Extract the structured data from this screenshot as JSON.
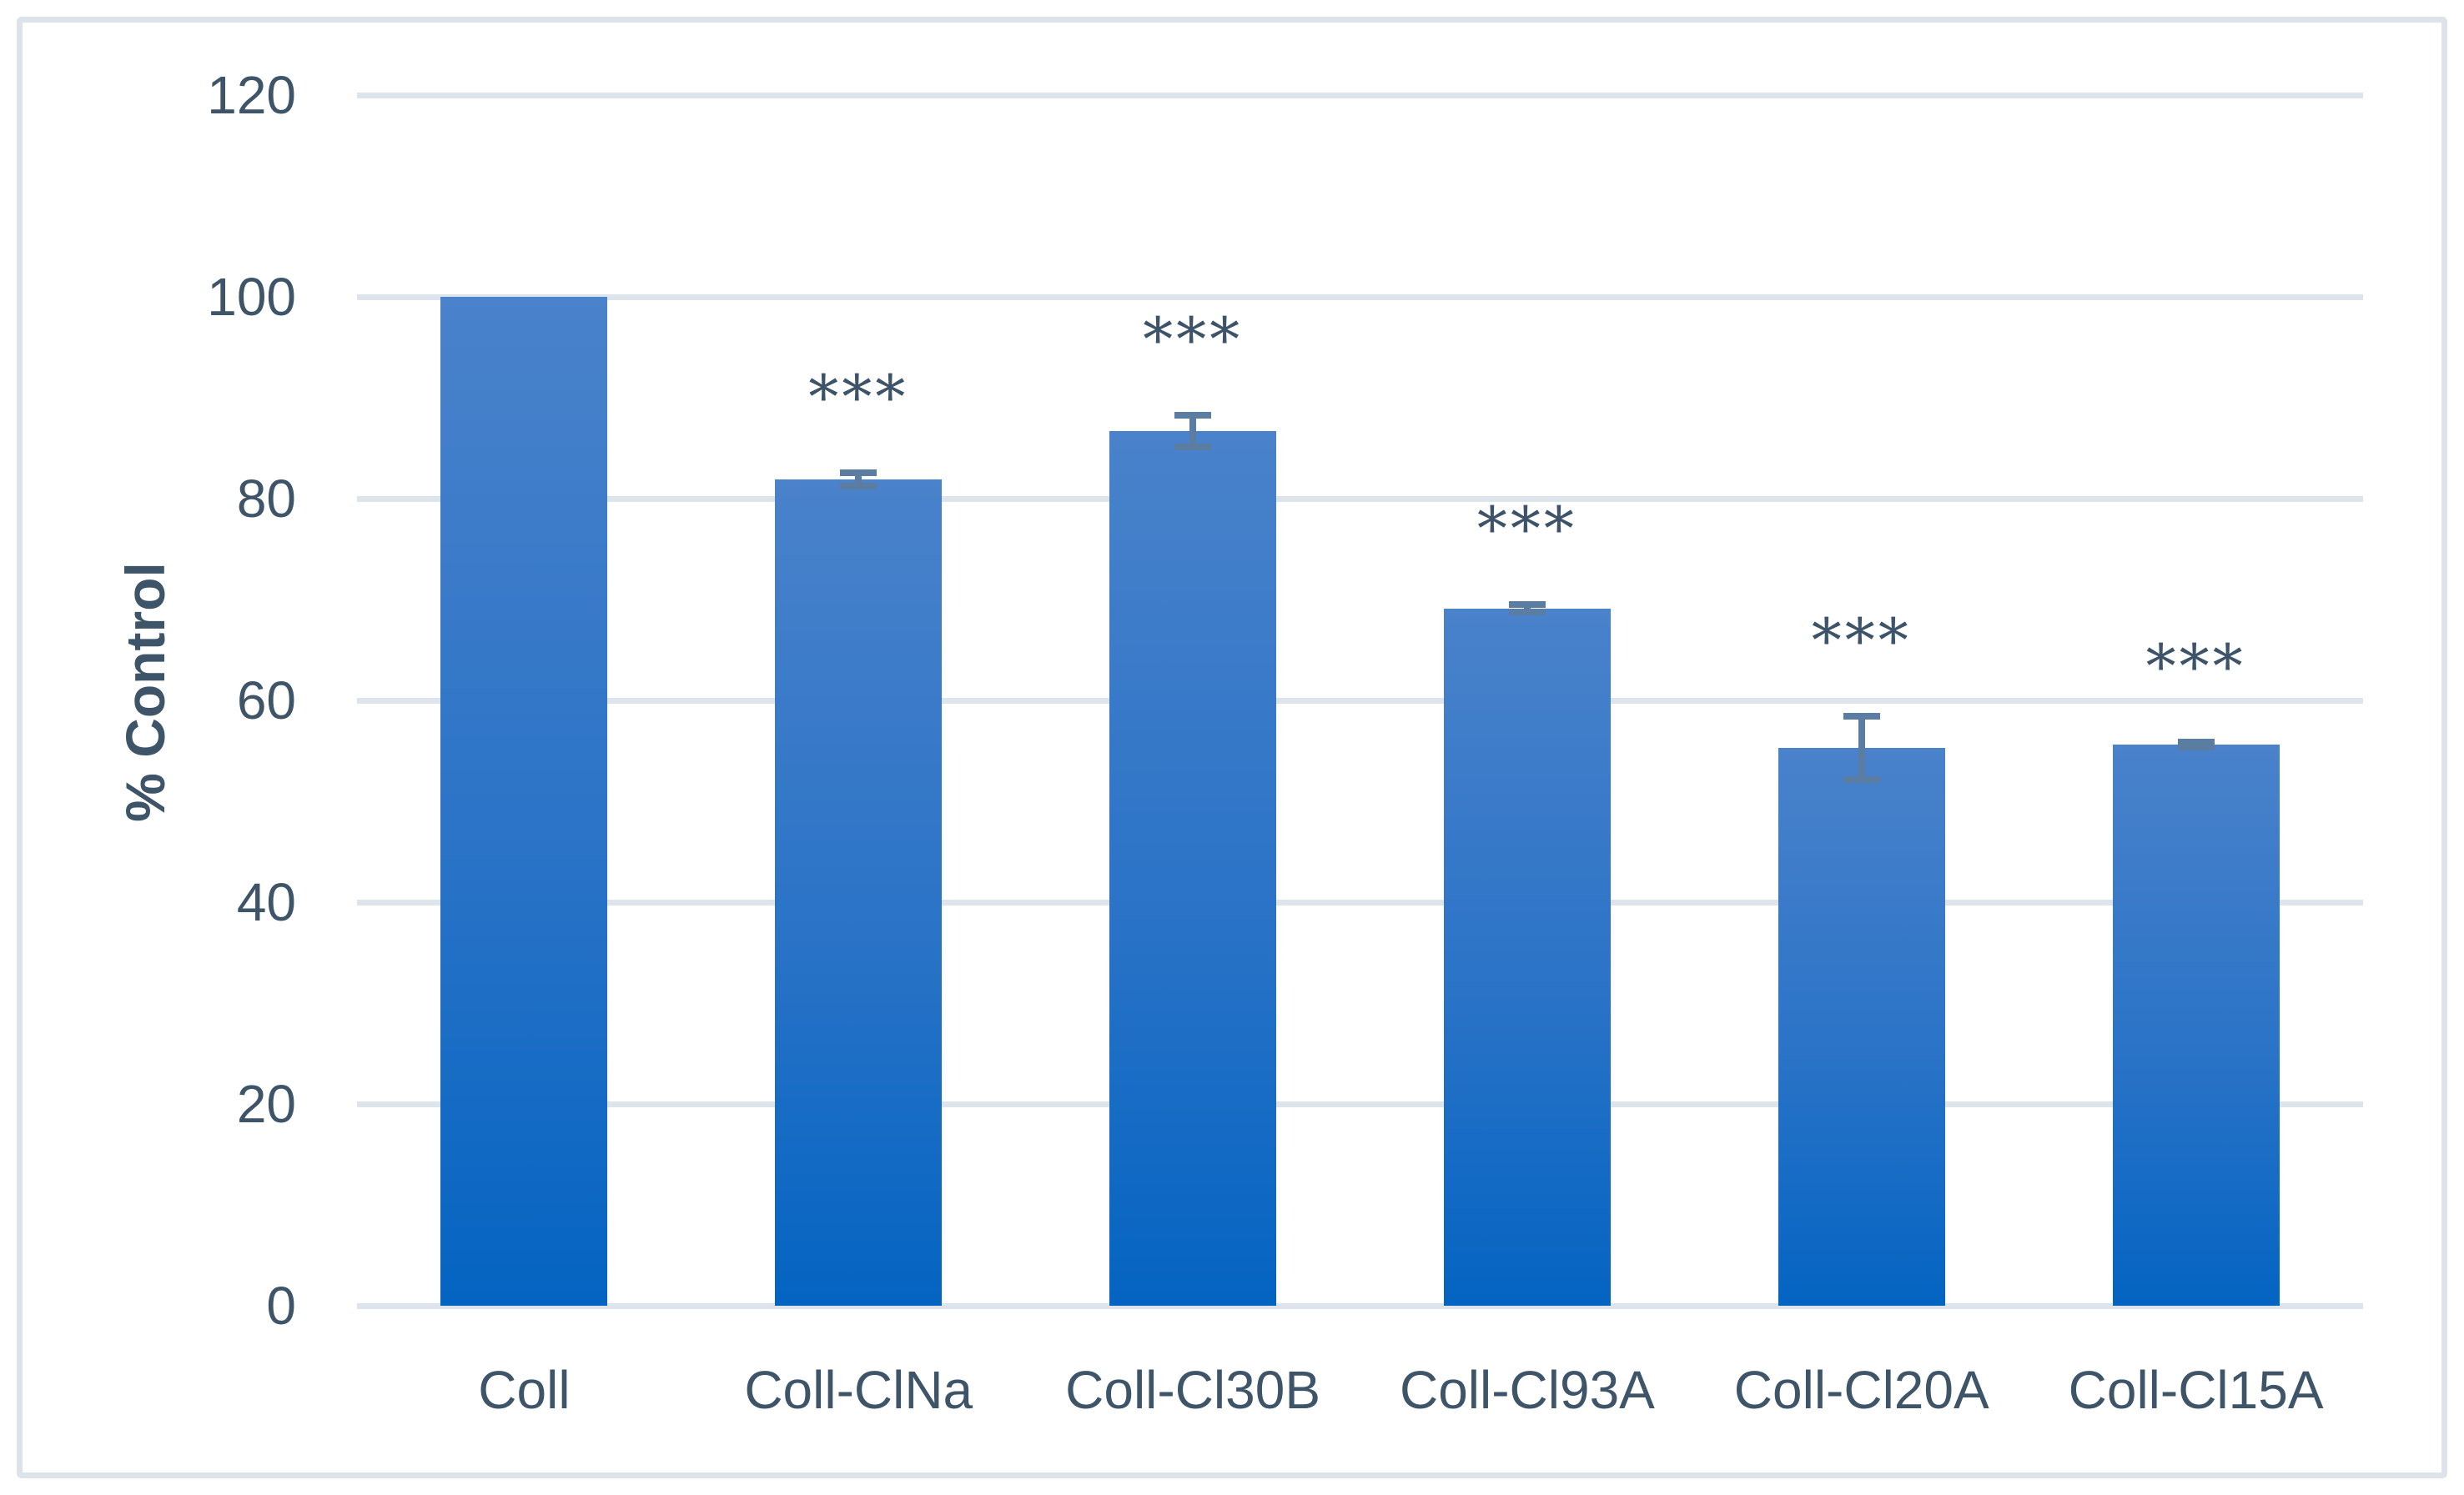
{
  "chart_data": {
    "type": "bar",
    "title": "",
    "xlabel": "",
    "ylabel": "% Control",
    "ylim": [
      0,
      120
    ],
    "y_ticks": [
      0,
      20,
      40,
      60,
      80,
      100,
      120
    ],
    "grid": "horizontal",
    "legend": "none",
    "categories": [
      "Coll",
      "Coll-ClNa",
      "Coll-Cl30B",
      "Coll-Cl93A",
      "Coll-Cl20A",
      "Coll-Cl15A"
    ],
    "values": [
      100,
      81.9,
      86.7,
      69.1,
      55.3,
      55.6
    ],
    "error_bars": [
      0,
      1.0,
      1.9,
      0.7,
      3.5,
      0.6
    ],
    "significance": [
      "",
      "***",
      "***",
      "***",
      "***",
      "***"
    ],
    "colors": {
      "bar_gradient_top": "#4a82cb",
      "bar_gradient_bottom": "#0464c2",
      "error_bar": "#5b7da2",
      "gridline": "#dde4ec",
      "axis_text": "#3e5469",
      "significance_text": "#3d5369",
      "chart_border": "#dce3eb",
      "background": "#ffffff"
    }
  }
}
